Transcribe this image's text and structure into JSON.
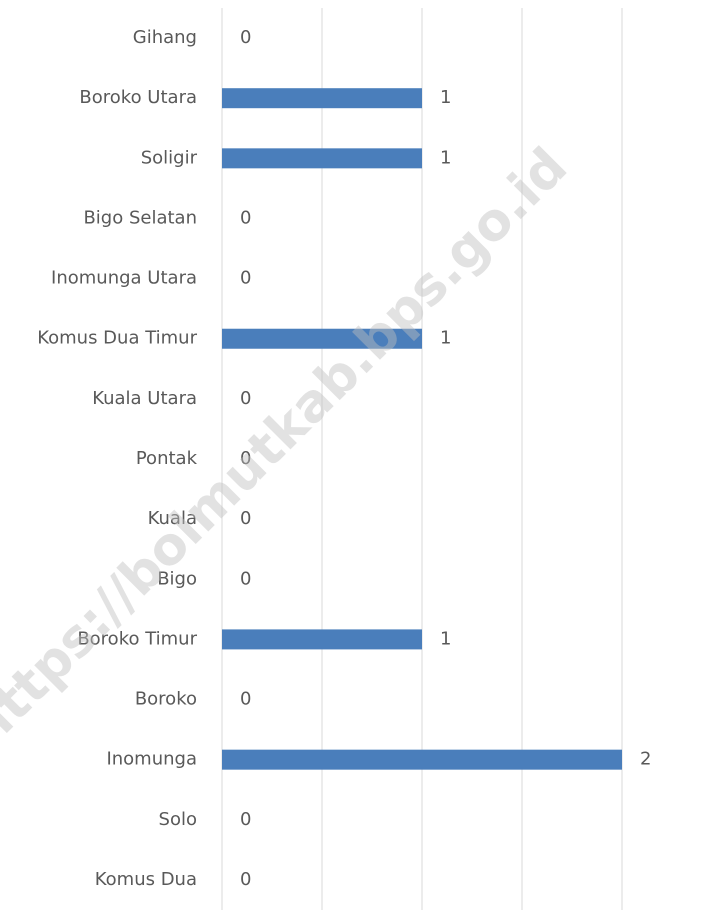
{
  "chart_data": {
    "type": "barh",
    "categories": [
      "Gihang",
      "Boroko Utara",
      "Soligir",
      "Bigo Selatan",
      "Inomunga Utara",
      "Komus Dua Timur",
      "Kuala Utara",
      "Pontak",
      "Kuala",
      "Bigo",
      "Boroko Timur",
      "Boroko",
      "Inomunga",
      "Solo",
      "Komus Dua"
    ],
    "values": [
      0,
      1,
      1,
      0,
      0,
      1,
      0,
      0,
      0,
      0,
      1,
      0,
      2,
      0,
      0
    ],
    "color": "#4a7ebb",
    "xlim": [
      0,
      2
    ],
    "xticks": [
      0,
      0.5,
      1,
      1.5,
      2
    ],
    "grid": true,
    "watermark": "https://bolmutkab.bps.go.id"
  }
}
